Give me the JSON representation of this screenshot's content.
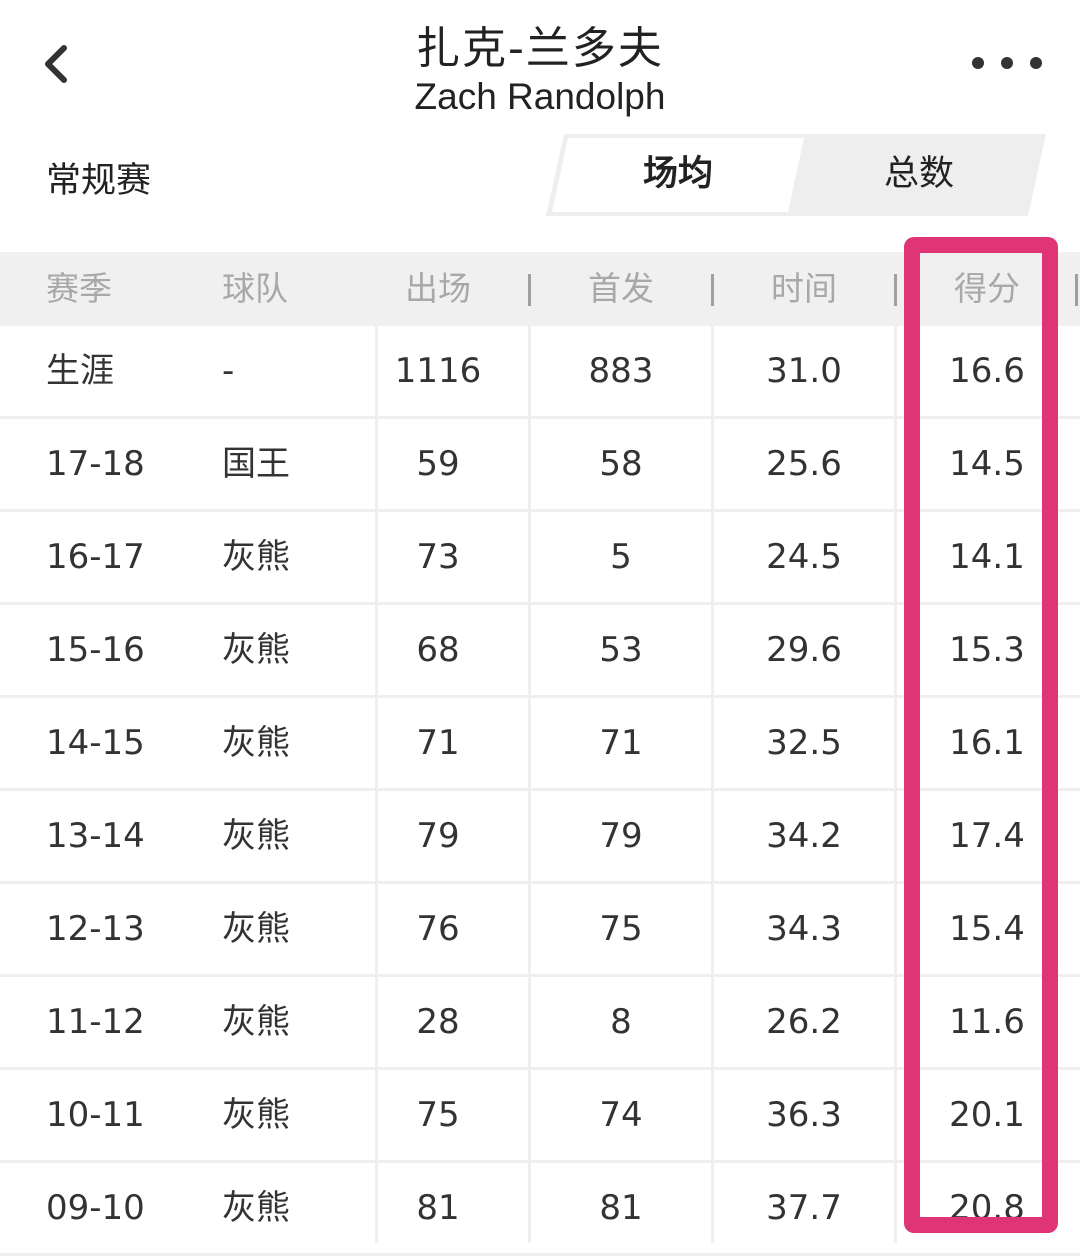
{
  "header": {
    "title_cn": "扎克-兰多夫",
    "title_en": "Zach Randolph"
  },
  "season_type": "常规赛",
  "segment": {
    "per_game": "场均",
    "totals": "总数"
  },
  "table": {
    "columns": [
      "赛季",
      "球队",
      "出场",
      "首发",
      "时间",
      "得分"
    ],
    "rows": [
      [
        "生涯",
        "-",
        "1116",
        "883",
        "31.0",
        "16.6"
      ],
      [
        "17-18",
        "国王",
        "59",
        "58",
        "25.6",
        "14.5"
      ],
      [
        "16-17",
        "灰熊",
        "73",
        "5",
        "24.5",
        "14.1"
      ],
      [
        "15-16",
        "灰熊",
        "68",
        "53",
        "29.6",
        "15.3"
      ],
      [
        "14-15",
        "灰熊",
        "71",
        "71",
        "32.5",
        "16.1"
      ],
      [
        "13-14",
        "灰熊",
        "79",
        "79",
        "34.2",
        "17.4"
      ],
      [
        "12-13",
        "灰熊",
        "76",
        "75",
        "34.3",
        "15.4"
      ],
      [
        "11-12",
        "灰熊",
        "28",
        "8",
        "26.2",
        "11.6"
      ],
      [
        "10-11",
        "灰熊",
        "75",
        "74",
        "36.3",
        "20.1"
      ],
      [
        "09-10",
        "灰熊",
        "81",
        "81",
        "37.7",
        "20.8"
      ]
    ]
  },
  "colors": {
    "highlight": "#df3476",
    "header_bg": "#f0f0f0",
    "header_text": "#a8a8a8"
  },
  "icons": {
    "back": "chevron-left-icon",
    "more": "more-dots-icon"
  }
}
